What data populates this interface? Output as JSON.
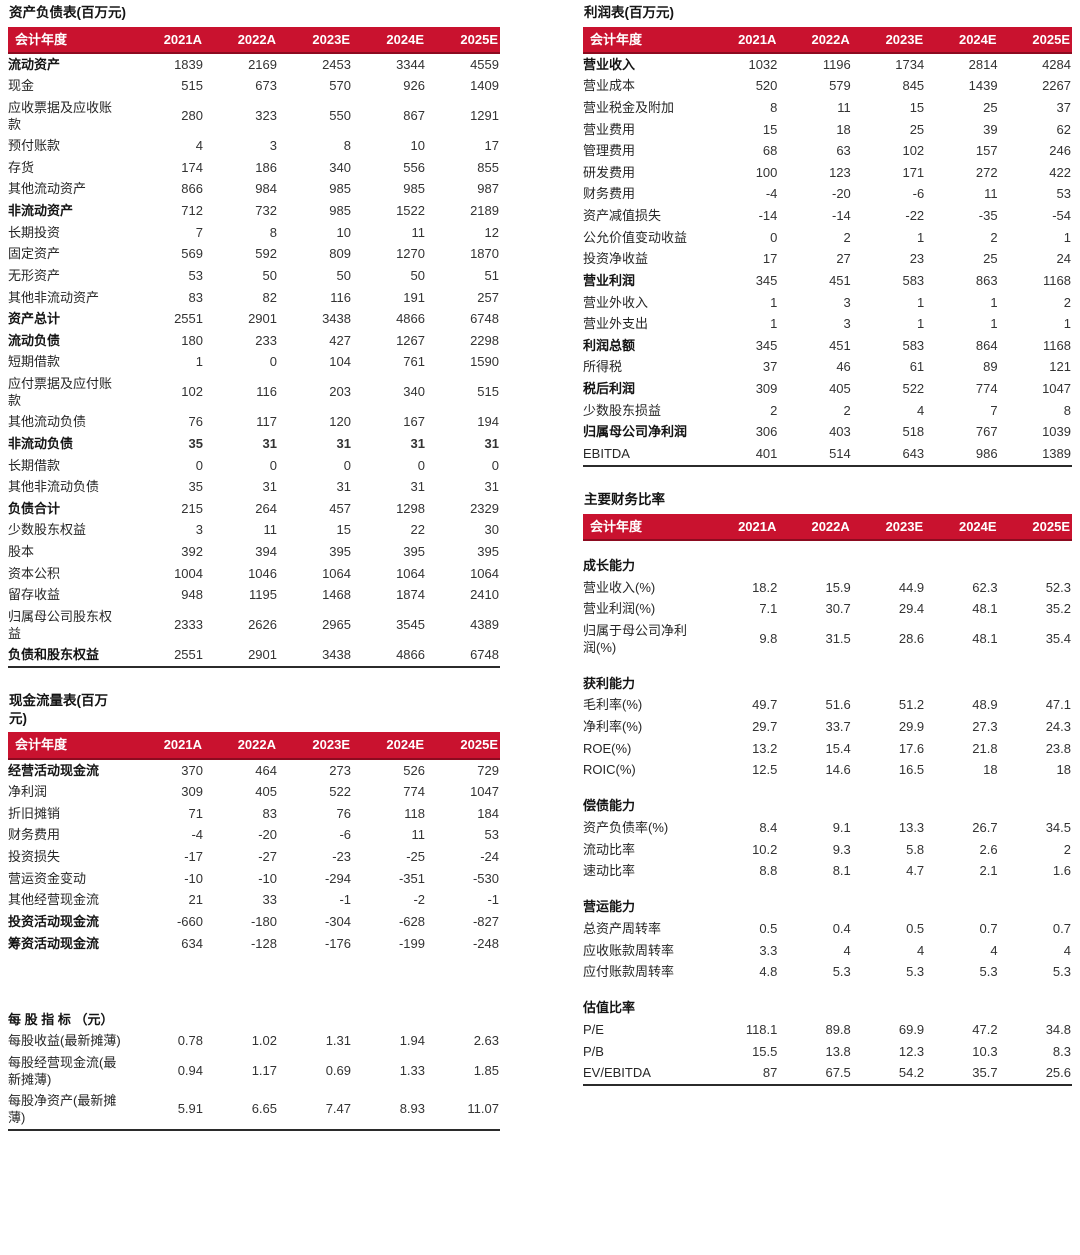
{
  "colors": {
    "header_bg": "#C9122F",
    "header_border": "#8C0B20",
    "header_text": "#FFFFFF",
    "body_text": "#262626",
    "rule": "#2B2B2B"
  },
  "header_label": "会计年度",
  "columns": [
    "2021A",
    "2022A",
    "2023E",
    "2024E",
    "2025E"
  ],
  "tables": {
    "balance_sheet": {
      "title": "资产负债表(百万元)",
      "rows": [
        {
          "l": "流动资产",
          "b": true,
          "v": [
            "1839",
            "2169",
            "2453",
            "3344",
            "4559"
          ]
        },
        {
          "l": "现金",
          "v": [
            "515",
            "673",
            "570",
            "926",
            "1409"
          ]
        },
        {
          "l": "应收票据及应收账款",
          "v": [
            "280",
            "323",
            "550",
            "867",
            "1291"
          ]
        },
        {
          "l": "预付账款",
          "v": [
            "4",
            "3",
            "8",
            "10",
            "17"
          ]
        },
        {
          "l": "存货",
          "v": [
            "174",
            "186",
            "340",
            "556",
            "855"
          ]
        },
        {
          "l": "其他流动资产",
          "v": [
            "866",
            "984",
            "985",
            "985",
            "987"
          ]
        },
        {
          "l": "非流动资产",
          "b": true,
          "v": [
            "712",
            "732",
            "985",
            "1522",
            "2189"
          ]
        },
        {
          "l": "长期投资",
          "v": [
            "7",
            "8",
            "10",
            "11",
            "12"
          ]
        },
        {
          "l": "固定资产",
          "v": [
            "569",
            "592",
            "809",
            "1270",
            "1870"
          ]
        },
        {
          "l": "无形资产",
          "v": [
            "53",
            "50",
            "50",
            "50",
            "51"
          ]
        },
        {
          "l": "其他非流动资产",
          "v": [
            "83",
            "82",
            "116",
            "191",
            "257"
          ]
        },
        {
          "l": "资产总计",
          "b": true,
          "v": [
            "2551",
            "2901",
            "3438",
            "4866",
            "6748"
          ]
        },
        {
          "l": "流动负债",
          "b": true,
          "v": [
            "180",
            "233",
            "427",
            "1267",
            "2298"
          ]
        },
        {
          "l": "短期借款",
          "v": [
            "1",
            "0",
            "104",
            "761",
            "1590"
          ]
        },
        {
          "l": "应付票据及应付账款",
          "v": [
            "102",
            "116",
            "203",
            "340",
            "515"
          ]
        },
        {
          "l": "其他流动负债",
          "v": [
            "76",
            "117",
            "120",
            "167",
            "194"
          ]
        },
        {
          "l": "非流动负债",
          "b": true,
          "bv": true,
          "v": [
            "35",
            "31",
            "31",
            "31",
            "31"
          ]
        },
        {
          "l": "长期借款",
          "v": [
            "0",
            "0",
            "0",
            "0",
            "0"
          ]
        },
        {
          "l": "其他非流动负债",
          "v": [
            "35",
            "31",
            "31",
            "31",
            "31"
          ]
        },
        {
          "l": "负债合计",
          "b": true,
          "v": [
            "215",
            "264",
            "457",
            "1298",
            "2329"
          ]
        },
        {
          "l": "少数股东权益",
          "v": [
            "3",
            "11",
            "15",
            "22",
            "30"
          ]
        },
        {
          "l": "股本",
          "v": [
            "392",
            "394",
            "395",
            "395",
            "395"
          ]
        },
        {
          "l": "资本公积",
          "v": [
            "1004",
            "1046",
            "1064",
            "1064",
            "1064"
          ]
        },
        {
          "l": "留存收益",
          "v": [
            "948",
            "1195",
            "1468",
            "1874",
            "2410"
          ]
        },
        {
          "l": "归属母公司股东权益",
          "v": [
            "2333",
            "2626",
            "2965",
            "3545",
            "4389"
          ]
        },
        {
          "l": "负债和股东权益",
          "b": true,
          "v": [
            "2551",
            "2901",
            "3438",
            "4866",
            "6748"
          ]
        }
      ]
    },
    "cash_flow": {
      "title": "现金流量表(百万元)",
      "rows": [
        {
          "l": "经营活动现金流",
          "b": true,
          "v": [
            "370",
            "464",
            "273",
            "526",
            "729"
          ]
        },
        {
          "l": "净利润",
          "v": [
            "309",
            "405",
            "522",
            "774",
            "1047"
          ]
        },
        {
          "l": "折旧摊销",
          "v": [
            "71",
            "83",
            "76",
            "118",
            "184"
          ]
        },
        {
          "l": "财务费用",
          "v": [
            "-4",
            "-20",
            "-6",
            "11",
            "53"
          ]
        },
        {
          "l": "投资损失",
          "v": [
            "-17",
            "-27",
            "-23",
            "-25",
            "-24"
          ]
        },
        {
          "l": "营运资金变动",
          "v": [
            "-10",
            "-10",
            "-294",
            "-351",
            "-530"
          ]
        },
        {
          "l": "其他经营现金流",
          "v": [
            "21",
            "33",
            "-1",
            "-2",
            "-1"
          ]
        },
        {
          "l": "投资活动现金流",
          "b": true,
          "v": [
            "-660",
            "-180",
            "-304",
            "-628",
            "-827"
          ]
        },
        {
          "l": "筹资活动现金流",
          "b": true,
          "v": [
            "634",
            "-128",
            "-176",
            "-199",
            "-248"
          ]
        },
        {
          "spacer": true
        },
        {
          "s": "每 股 指 标 （元）"
        },
        {
          "l": "每股收益(最新摊薄)",
          "v": [
            "0.78",
            "1.02",
            "1.31",
            "1.94",
            "2.63"
          ]
        },
        {
          "l": "每股经营现金流(最新摊薄)",
          "v": [
            "0.94",
            "1.17",
            "0.69",
            "1.33",
            "1.85"
          ]
        },
        {
          "l": "每股净资产(最新摊薄)",
          "v": [
            "5.91",
            "6.65",
            "7.47",
            "8.93",
            "11.07"
          ]
        }
      ]
    },
    "income": {
      "title": "利润表(百万元)",
      "rows": [
        {
          "l": "营业收入",
          "b": true,
          "v": [
            "1032",
            "1196",
            "1734",
            "2814",
            "4284"
          ]
        },
        {
          "l": "营业成本",
          "v": [
            "520",
            "579",
            "845",
            "1439",
            "2267"
          ]
        },
        {
          "l": "营业税金及附加",
          "v": [
            "8",
            "11",
            "15",
            "25",
            "37"
          ]
        },
        {
          "l": "营业费用",
          "v": [
            "15",
            "18",
            "25",
            "39",
            "62"
          ]
        },
        {
          "l": "管理费用",
          "v": [
            "68",
            "63",
            "102",
            "157",
            "246"
          ]
        },
        {
          "l": "研发费用",
          "v": [
            "100",
            "123",
            "171",
            "272",
            "422"
          ]
        },
        {
          "l": "财务费用",
          "v": [
            "-4",
            "-20",
            "-6",
            "11",
            "53"
          ]
        },
        {
          "l": "资产减值损失",
          "v": [
            "-14",
            "-14",
            "-22",
            "-35",
            "-54"
          ]
        },
        {
          "l": "公允价值变动收益",
          "v": [
            "0",
            "2",
            "1",
            "2",
            "1"
          ]
        },
        {
          "l": "投资净收益",
          "v": [
            "17",
            "27",
            "23",
            "25",
            "24"
          ]
        },
        {
          "l": "营业利润",
          "b": true,
          "v": [
            "345",
            "451",
            "583",
            "863",
            "1168"
          ]
        },
        {
          "l": "营业外收入",
          "v": [
            "1",
            "3",
            "1",
            "1",
            "2"
          ]
        },
        {
          "l": "营业外支出",
          "v": [
            "1",
            "3",
            "1",
            "1",
            "1"
          ]
        },
        {
          "l": "利润总额",
          "b": true,
          "v": [
            "345",
            "451",
            "583",
            "864",
            "1168"
          ]
        },
        {
          "l": "所得税",
          "v": [
            "37",
            "46",
            "61",
            "89",
            "121"
          ]
        },
        {
          "l": "税后利润",
          "b": true,
          "v": [
            "309",
            "405",
            "522",
            "774",
            "1047"
          ]
        },
        {
          "l": "少数股东损益",
          "v": [
            "2",
            "2",
            "4",
            "7",
            "8"
          ]
        },
        {
          "l": "归属母公司净利润",
          "b": true,
          "v": [
            "306",
            "403",
            "518",
            "767",
            "1039"
          ]
        },
        {
          "l": "EBITDA",
          "v": [
            "401",
            "514",
            "643",
            "986",
            "1389"
          ]
        }
      ]
    },
    "ratios": {
      "title": "主要财务比率",
      "rows": [
        {
          "s": "成长能力"
        },
        {
          "l": "营业收入(%)",
          "v": [
            "18.2",
            "15.9",
            "44.9",
            "62.3",
            "52.3"
          ]
        },
        {
          "l": "营业利润(%)",
          "v": [
            "7.1",
            "30.7",
            "29.4",
            "48.1",
            "35.2"
          ]
        },
        {
          "l": "归属于母公司净利润(%)",
          "v": [
            "9.8",
            "31.5",
            "28.6",
            "48.1",
            "35.4"
          ]
        },
        {
          "s": "获利能力"
        },
        {
          "l": "毛利率(%)",
          "v": [
            "49.7",
            "51.6",
            "51.2",
            "48.9",
            "47.1"
          ]
        },
        {
          "l": "净利率(%)",
          "v": [
            "29.7",
            "33.7",
            "29.9",
            "27.3",
            "24.3"
          ]
        },
        {
          "l": "ROE(%)",
          "v": [
            "13.2",
            "15.4",
            "17.6",
            "21.8",
            "23.8"
          ]
        },
        {
          "l": "ROIC(%)",
          "v": [
            "12.5",
            "14.6",
            "16.5",
            "18",
            "18"
          ]
        },
        {
          "s": "偿债能力"
        },
        {
          "l": "资产负债率(%)",
          "v": [
            "8.4",
            "9.1",
            "13.3",
            "26.7",
            "34.5"
          ]
        },
        {
          "l": "流动比率",
          "v": [
            "10.2",
            "9.3",
            "5.8",
            "2.6",
            "2"
          ]
        },
        {
          "l": "速动比率",
          "v": [
            "8.8",
            "8.1",
            "4.7",
            "2.1",
            "1.6"
          ]
        },
        {
          "s": "营运能力"
        },
        {
          "l": "总资产周转率",
          "v": [
            "0.5",
            "0.4",
            "0.5",
            "0.7",
            "0.7"
          ]
        },
        {
          "l": "应收账款周转率",
          "v": [
            "3.3",
            "4",
            "4",
            "4",
            "4"
          ]
        },
        {
          "l": "应付账款周转率",
          "v": [
            "4.8",
            "5.3",
            "5.3",
            "5.3",
            "5.3"
          ]
        },
        {
          "s": "估值比率"
        },
        {
          "l": "P/E",
          "v": [
            "118.1",
            "89.8",
            "69.9",
            "47.2",
            "34.8"
          ]
        },
        {
          "l": "P/B",
          "v": [
            "15.5",
            "13.8",
            "12.3",
            "10.3",
            "8.3"
          ]
        },
        {
          "l": "EV/EBITDA",
          "v": [
            "87",
            "67.5",
            "54.2",
            "35.7",
            "25.6"
          ]
        }
      ]
    }
  }
}
